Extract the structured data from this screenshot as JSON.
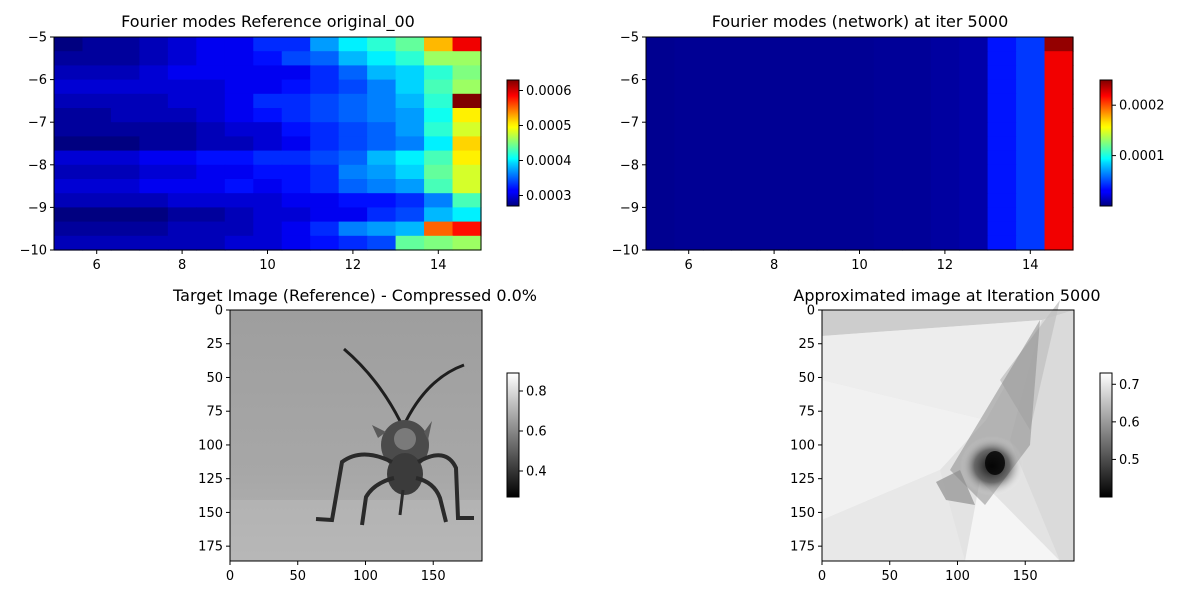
{
  "chart_data": [
    {
      "type": "heatmap",
      "title": "Fourier modes Reference original_00",
      "colormap": "jet",
      "x_ticks": [
        "6",
        "8",
        "10",
        "12",
        "14"
      ],
      "y_ticks": [
        "-5",
        "-6",
        "-7",
        "-8",
        "-9",
        "-10"
      ],
      "xlim": [
        5,
        15
      ],
      "ylim": [
        -10,
        -5
      ],
      "colorbar": {
        "min": 0.00027,
        "max": 0.00063,
        "ticks": [
          "0.0003",
          "0.0004",
          "0.0005",
          "0.0006"
        ]
      },
      "values": [
        [
          0.00027,
          0.00028,
          0.00028,
          0.00029,
          0.0003,
          0.00031,
          0.00031,
          0.00033,
          0.00033,
          0.00037,
          0.0004,
          0.00042,
          0.00044,
          0.00052,
          0.00059
        ],
        [
          0.00028,
          0.00028,
          0.00028,
          0.00029,
          0.0003,
          0.00031,
          0.00031,
          0.00032,
          0.00034,
          0.00035,
          0.00038,
          0.0004,
          0.00042,
          0.00046,
          0.00046
        ],
        [
          0.00029,
          0.00029,
          0.00029,
          0.0003,
          0.00031,
          0.00031,
          0.00031,
          0.00031,
          0.00031,
          0.00033,
          0.00035,
          0.00038,
          0.00039,
          0.00042,
          0.00045
        ],
        [
          0.0003,
          0.0003,
          0.0003,
          0.0003,
          0.0003,
          0.0003,
          0.00031,
          0.00031,
          0.00032,
          0.00033,
          0.00034,
          0.00036,
          0.00039,
          0.00043,
          0.00046
        ],
        [
          0.00029,
          0.00029,
          0.00029,
          0.00029,
          0.0003,
          0.0003,
          0.00031,
          0.00033,
          0.00033,
          0.00034,
          0.00035,
          0.00036,
          0.00038,
          0.00042,
          0.00063
        ],
        [
          0.00028,
          0.00028,
          0.00029,
          0.00029,
          0.00029,
          0.0003,
          0.00031,
          0.00032,
          0.00033,
          0.00034,
          0.00035,
          0.00036,
          0.00037,
          0.00041,
          0.0005
        ],
        [
          0.00028,
          0.00028,
          0.00028,
          0.00028,
          0.00028,
          0.00029,
          0.0003,
          0.0003,
          0.00032,
          0.00033,
          0.00034,
          0.00035,
          0.00037,
          0.00042,
          0.00048
        ],
        [
          0.00027,
          0.00027,
          0.00027,
          0.00028,
          0.00028,
          0.00029,
          0.00029,
          0.0003,
          0.00031,
          0.00033,
          0.00034,
          0.00035,
          0.00036,
          0.0004,
          0.00051
        ],
        [
          0.0003,
          0.0003,
          0.0003,
          0.00031,
          0.00031,
          0.00032,
          0.00032,
          0.00033,
          0.00033,
          0.00034,
          0.00035,
          0.00038,
          0.0004,
          0.00043,
          0.0005
        ],
        [
          0.00029,
          0.00029,
          0.00029,
          0.0003,
          0.0003,
          0.00031,
          0.00031,
          0.00032,
          0.00032,
          0.00033,
          0.00036,
          0.00037,
          0.00039,
          0.00044,
          0.00048
        ],
        [
          0.0003,
          0.0003,
          0.0003,
          0.00031,
          0.00031,
          0.00031,
          0.00032,
          0.00031,
          0.00032,
          0.00033,
          0.00035,
          0.00036,
          0.00037,
          0.00043,
          0.00048
        ],
        [
          0.00029,
          0.00029,
          0.00029,
          0.00029,
          0.0003,
          0.0003,
          0.0003,
          0.0003,
          0.00031,
          0.00031,
          0.00032,
          0.00032,
          0.00033,
          0.00036,
          0.00043
        ],
        [
          0.00026,
          0.00027,
          0.00027,
          0.00027,
          0.00028,
          0.00028,
          0.00029,
          0.0003,
          0.0003,
          0.00031,
          0.00031,
          0.00033,
          0.00034,
          0.00038,
          0.0004
        ],
        [
          0.00028,
          0.00028,
          0.00028,
          0.00028,
          0.00029,
          0.00029,
          0.00029,
          0.0003,
          0.00031,
          0.00033,
          0.00036,
          0.00037,
          0.00038,
          0.00055,
          0.00058
        ],
        [
          0.00029,
          0.00029,
          0.00029,
          0.00029,
          0.00029,
          0.00029,
          0.0003,
          0.0003,
          0.00031,
          0.00032,
          0.00033,
          0.00034,
          0.00044,
          0.00045,
          0.00046
        ]
      ]
    },
    {
      "type": "heatmap",
      "title": "Fourier modes (network) at iter 5000",
      "colormap": "jet",
      "x_ticks": [
        "6",
        "8",
        "10",
        "12",
        "14"
      ],
      "y_ticks": [
        "-5",
        "-6",
        "-7",
        "-8",
        "-9",
        "-10"
      ],
      "xlim": [
        5,
        15
      ],
      "ylim": [
        -10,
        -5
      ],
      "colorbar": {
        "min": 0.0,
        "max": 0.00025,
        "ticks": [
          "0.0001",
          "0.0002"
        ]
      },
      "column_values": [
        4e-06,
        5e-06,
        5e-06,
        5e-06,
        5e-06,
        5e-06,
        5e-06,
        5e-06,
        6e-06,
        6e-06,
        8e-06,
        1e-05,
        3.6e-05,
        4.5e-05,
        0.000222
      ],
      "top_right_cell": 0.000245
    },
    {
      "type": "heatmap",
      "title": "Target Image (Reference) - Compressed 0.0%",
      "colormap": "gray",
      "x_ticks": [
        "0",
        "50",
        "100",
        "150"
      ],
      "y_ticks": [
        "0",
        "25",
        "50",
        "75",
        "100",
        "125",
        "150",
        "175"
      ],
      "xlim": [
        0,
        186
      ],
      "ylim": [
        186,
        0
      ],
      "colorbar": {
        "min": 0.27,
        "max": 0.89,
        "ticks": [
          "0.4",
          "0.6",
          "0.8"
        ]
      },
      "background_top": 0.62,
      "background_bottom": 0.7
    },
    {
      "type": "heatmap",
      "title": "Approximated image at Iteration 5000",
      "colormap": "gray",
      "x_ticks": [
        "0",
        "50",
        "100",
        "150"
      ],
      "y_ticks": [
        "0",
        "25",
        "50",
        "75",
        "100",
        "125",
        "150",
        "175"
      ],
      "xlim": [
        0,
        186
      ],
      "ylim": [
        186,
        0
      ],
      "colorbar": {
        "min": 0.4,
        "max": 0.73,
        "ticks": [
          "0.5",
          "0.6",
          "0.7"
        ]
      }
    }
  ]
}
